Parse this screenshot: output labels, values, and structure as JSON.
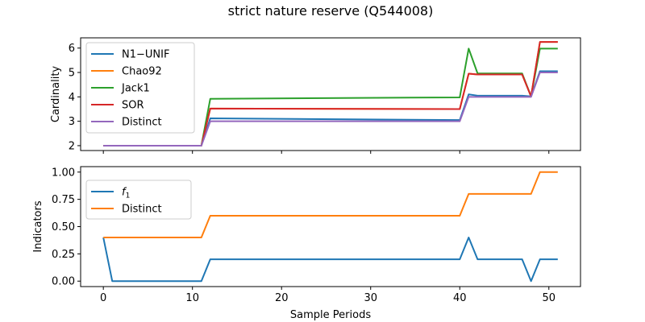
{
  "title": "strict nature reserve (Q544008)",
  "chart_data": [
    {
      "type": "line",
      "ylabel": "Cardinality",
      "xlabel": "",
      "xlim": [
        -2.55,
        53.55
      ],
      "ylim": [
        1.8,
        6.42
      ],
      "yticks": [
        2,
        3,
        4,
        5,
        6
      ],
      "xticks": [
        0,
        10,
        20,
        30,
        40,
        50
      ],
      "show_xtick_labels": false,
      "legend_position": "upper left",
      "series": [
        {
          "name": "N1−UNIF",
          "color": "#1f77b4",
          "x": [
            0,
            11,
            12,
            40,
            41,
            42,
            47,
            48,
            49,
            51
          ],
          "y": [
            2,
            2,
            3.12,
            3.05,
            4.1,
            4.05,
            4.05,
            4.02,
            5.05,
            5.05
          ]
        },
        {
          "name": "Chao92",
          "color": "#ff7f0e",
          "x": [
            0,
            11,
            12,
            40,
            41,
            42,
            47,
            48,
            49,
            51
          ],
          "y": [
            2,
            2,
            3.52,
            3.5,
            4.95,
            4.92,
            4.92,
            4.02,
            6.25,
            6.25
          ]
        },
        {
          "name": "Jack1",
          "color": "#2ca02c",
          "x": [
            0,
            11,
            12,
            40,
            41,
            42,
            47,
            48,
            49,
            51
          ],
          "y": [
            2,
            2,
            3.92,
            3.98,
            5.98,
            4.96,
            4.96,
            4.02,
            5.98,
            5.98
          ]
        },
        {
          "name": "SOR",
          "color": "#d62728",
          "x": [
            0,
            11,
            12,
            40,
            41,
            42,
            47,
            48,
            49,
            51
          ],
          "y": [
            2,
            2,
            3.52,
            3.5,
            4.95,
            4.92,
            4.92,
            4.02,
            6.25,
            6.25
          ]
        },
        {
          "name": "Distinct",
          "color": "#9467bd",
          "x": [
            0,
            11,
            12,
            40,
            41,
            47,
            48,
            49,
            51
          ],
          "y": [
            2,
            2,
            3,
            3,
            4,
            4,
            4,
            5,
            5
          ]
        }
      ]
    },
    {
      "type": "line",
      "ylabel": "Indicators",
      "xlabel": "Sample Periods",
      "xlim": [
        -2.55,
        53.55
      ],
      "ylim": [
        -0.05,
        1.05
      ],
      "yticks": [
        0.0,
        0.25,
        0.5,
        0.75,
        1.0
      ],
      "ytick_labels": [
        "0.00",
        "0.25",
        "0.50",
        "0.75",
        "1.00"
      ],
      "xticks": [
        0,
        10,
        20,
        30,
        40,
        50
      ],
      "xtick_labels": [
        "0",
        "10",
        "20",
        "30",
        "40",
        "50"
      ],
      "legend_position": "upper left",
      "series": [
        {
          "name": "f1",
          "color": "#1f77b4",
          "x": [
            0,
            1,
            11,
            12,
            40,
            41,
            42,
            47,
            48,
            49,
            51
          ],
          "y": [
            0.4,
            0,
            0,
            0.2,
            0.2,
            0.4,
            0.2,
            0.2,
            0,
            0.2,
            0.2
          ]
        },
        {
          "name": "Distinct",
          "color": "#ff7f0e",
          "x": [
            0,
            11,
            12,
            40,
            41,
            48,
            49,
            51
          ],
          "y": [
            0.4,
            0.4,
            0.6,
            0.6,
            0.8,
            0.8,
            1.0,
            1.0
          ]
        }
      ]
    }
  ]
}
